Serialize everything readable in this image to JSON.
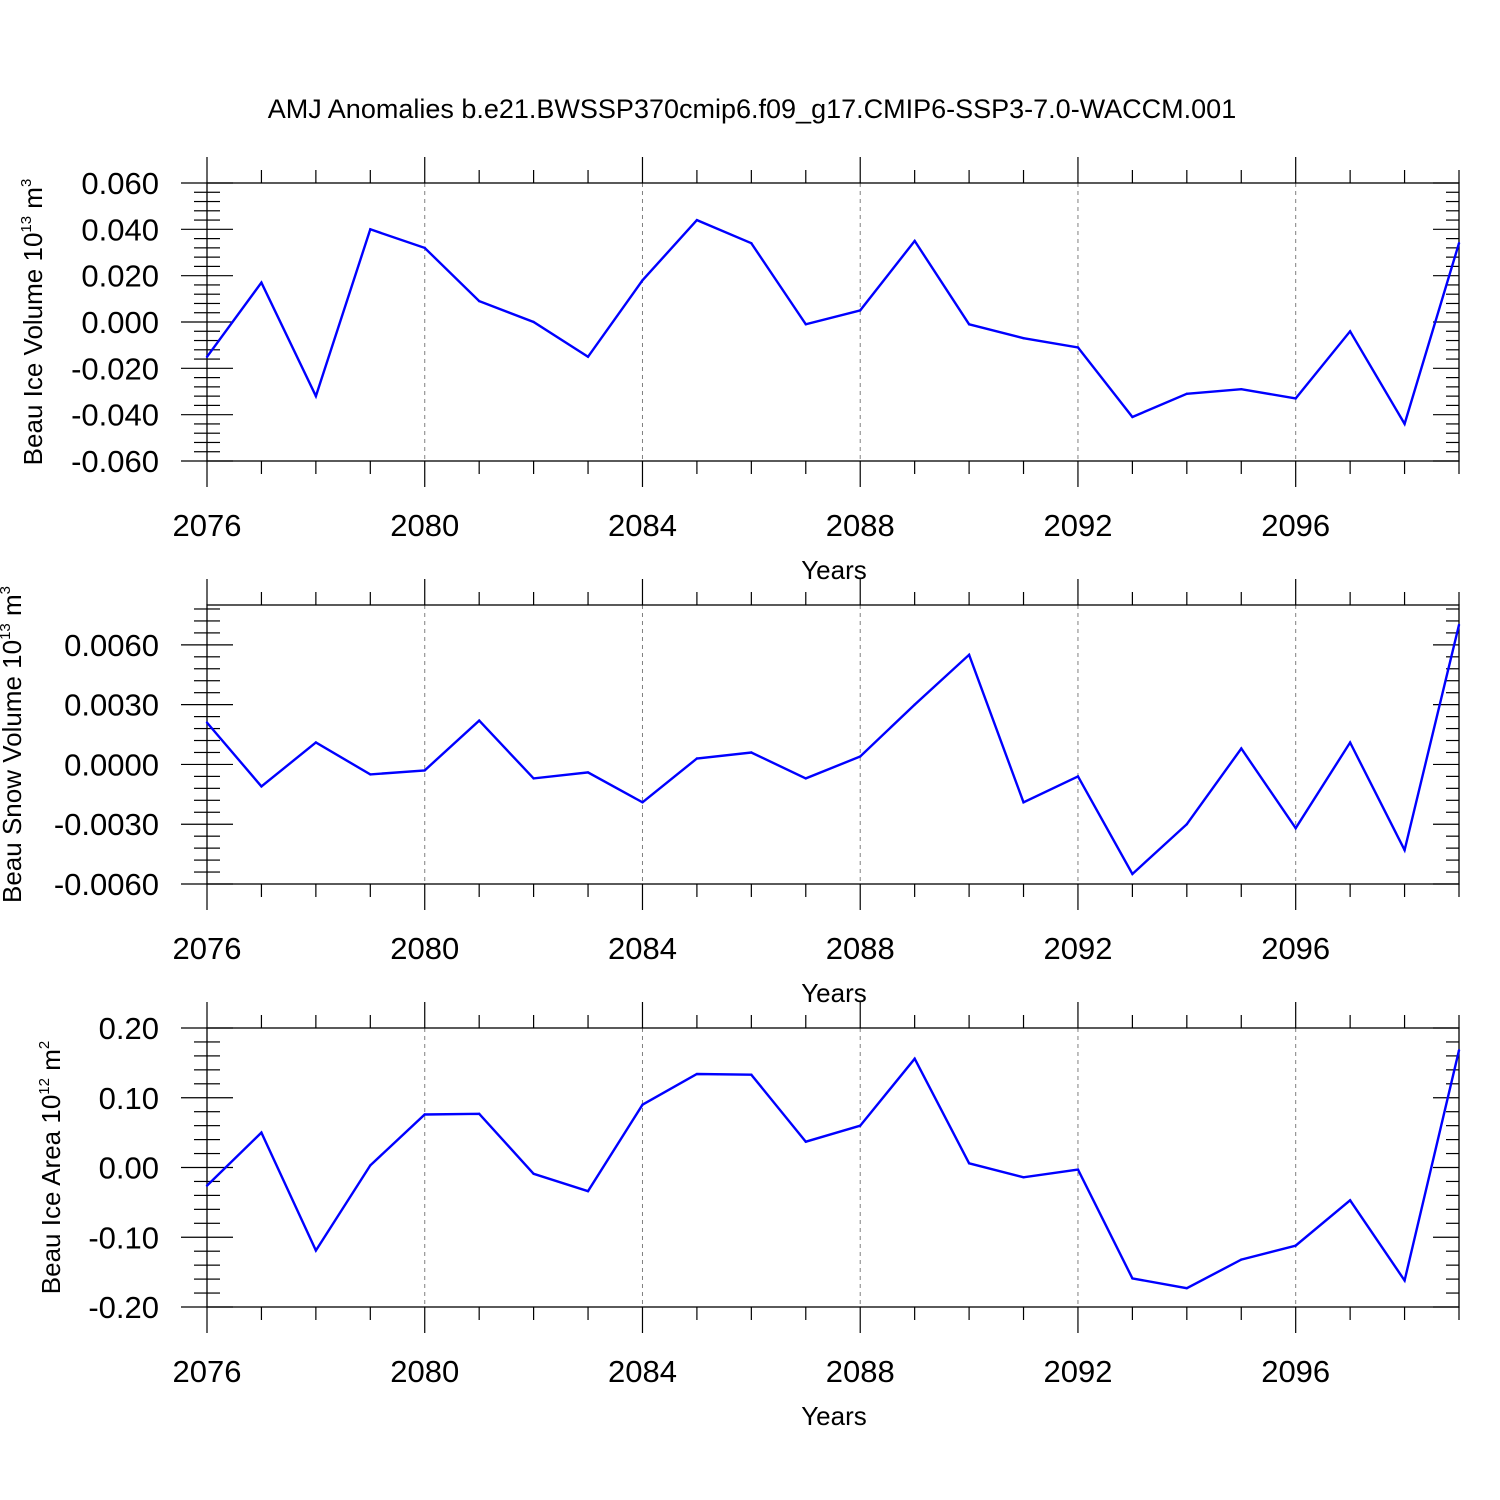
{
  "title": "AMJ Anomalies b.e21.BWSSP370cmip6.f09_g17.CMIP6-SSP3-7.0-WACCM.001",
  "colors": {
    "line": "#0000ff",
    "axis": "#000000",
    "grid": "#808080"
  },
  "chart_data": [
    {
      "type": "line",
      "xlabel": "Years",
      "ylabel": {
        "text": "Beau Ice Volume 10",
        "exp": "13",
        "unit": " m",
        "unit_exp": "3"
      },
      "xlim": [
        2076,
        2099
      ],
      "ylim": [
        -0.06,
        0.06
      ],
      "xticks": [
        "2076",
        "2080",
        "2084",
        "2088",
        "2092",
        "2096"
      ],
      "yticks": [
        "-0.060",
        "-0.040",
        "-0.020",
        "0.000",
        "0.020",
        "0.040",
        "0.060"
      ],
      "grid": "vertical dashed at major x ticks",
      "x": [
        2076,
        2077,
        2078,
        2079,
        2080,
        2081,
        2082,
        2083,
        2084,
        2085,
        2086,
        2087,
        2088,
        2089,
        2090,
        2091,
        2092,
        2093,
        2094,
        2095,
        2096,
        2097,
        2098,
        2099
      ],
      "values": [
        -0.015,
        0.017,
        -0.032,
        0.04,
        0.032,
        0.009,
        0.0,
        -0.015,
        0.018,
        0.044,
        0.034,
        -0.001,
        0.005,
        0.035,
        -0.001,
        -0.007,
        -0.011,
        -0.041,
        -0.031,
        -0.029,
        -0.033,
        -0.004,
        -0.044,
        0.034
      ]
    },
    {
      "type": "line",
      "xlabel": "Years",
      "ylabel": {
        "text": "Beau Snow Volume 10",
        "exp": "13",
        "unit": " m",
        "unit_exp": "3"
      },
      "xlim": [
        2076,
        2099
      ],
      "ylim": [
        -0.006,
        0.008
      ],
      "xticks": [
        "2076",
        "2080",
        "2084",
        "2088",
        "2092",
        "2096"
      ],
      "yticks": [
        "-0.0060",
        "-0.0030",
        "0.0000",
        "0.0030",
        "0.0060"
      ],
      "grid": "vertical dashed at major x ticks",
      "x": [
        2076,
        2077,
        2078,
        2079,
        2080,
        2081,
        2082,
        2083,
        2084,
        2085,
        2086,
        2087,
        2088,
        2089,
        2090,
        2091,
        2092,
        2093,
        2094,
        2095,
        2096,
        2097,
        2098,
        2099
      ],
      "values": [
        0.0021,
        -0.0011,
        0.0011,
        -0.0005,
        -0.0003,
        0.0022,
        -0.0007,
        -0.0004,
        -0.0019,
        0.0003,
        0.0006,
        -0.0007,
        0.0004,
        0.003,
        0.0055,
        -0.0019,
        -0.0006,
        -0.0055,
        -0.003,
        0.0008,
        -0.0032,
        0.0011,
        -0.0043,
        0.007
      ]
    },
    {
      "type": "line",
      "xlabel": "Years",
      "ylabel": {
        "text": "Beau Ice Area 10",
        "exp": "12",
        "unit": " m",
        "unit_exp": "2"
      },
      "xlim": [
        2076,
        2099
      ],
      "ylim": [
        -0.2,
        0.2
      ],
      "xticks": [
        "2076",
        "2080",
        "2084",
        "2088",
        "2092",
        "2096"
      ],
      "yticks": [
        "-0.20",
        "-0.10",
        "0.00",
        "0.10",
        "0.20"
      ],
      "grid": "vertical dashed at major x ticks",
      "x": [
        2076,
        2077,
        2078,
        2079,
        2080,
        2081,
        2082,
        2083,
        2084,
        2085,
        2086,
        2087,
        2088,
        2089,
        2090,
        2091,
        2092,
        2093,
        2094,
        2095,
        2096,
        2097,
        2098,
        2099
      ],
      "values": [
        -0.026,
        0.05,
        -0.119,
        0.003,
        0.076,
        0.077,
        -0.009,
        -0.034,
        0.09,
        0.134,
        0.133,
        0.037,
        0.06,
        0.156,
        0.006,
        -0.014,
        -0.003,
        -0.159,
        -0.173,
        -0.132,
        -0.112,
        -0.047,
        -0.162,
        0.168
      ]
    }
  ]
}
